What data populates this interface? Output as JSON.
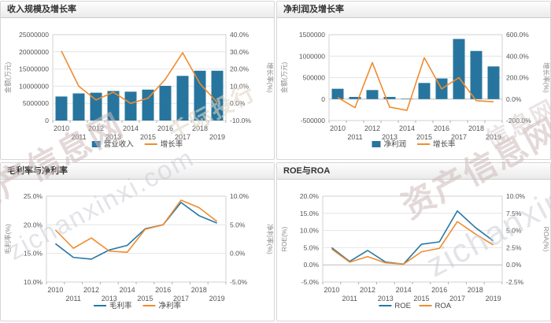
{
  "colors": {
    "bar_blue": "#27759e",
    "line_blue": "#2579a8",
    "line_orange": "#f08c2e",
    "panel_border": "#d6d6d6",
    "header_text": "#333333"
  },
  "watermarks": [
    "资产信息网",
    "zichanxinxi.com",
    "千际投行",
    "资产信息网",
    "zichanxinxi",
    "信息网"
  ],
  "chart_data": [
    {
      "type": "bar",
      "title": "收入规模及增长率",
      "categories": [
        "2010",
        "2011",
        "2012",
        "2013",
        "2014",
        "2015",
        "2016",
        "2017",
        "2018",
        "2019"
      ],
      "left_axis": {
        "label": "金额(万元)",
        "min": 0,
        "max": 25000000,
        "tick_values": [
          25000000,
          20000000,
          15000000,
          10000000,
          5000000,
          0
        ],
        "tick_labels": [
          "25000000",
          "20000000",
          "15000000",
          "10000000",
          "5000000",
          "0"
        ]
      },
      "right_axis": {
        "label": "增长率(%)",
        "min": -10,
        "max": 40,
        "tick_values": [
          40,
          30,
          20,
          10,
          0,
          -10
        ],
        "tick_labels": [
          "40.0%",
          "30.0%",
          "20.0%",
          "10.0%",
          "0.0%",
          "-10.0%"
        ]
      },
      "series": [
        {
          "name": "营业收入",
          "kind": "bar",
          "axis": "left",
          "color": "#27759e",
          "values": [
            7000000,
            7900000,
            8100000,
            8600000,
            8400000,
            9000000,
            10100000,
            13000000,
            14500000,
            14500000
          ]
        },
        {
          "name": "增长率",
          "kind": "line",
          "axis": "right",
          "color": "#f08c2e",
          "values": [
            30.5,
            10,
            2,
            6.5,
            0,
            3,
            14,
            29.5,
            11.5,
            0.5
          ]
        }
      ],
      "legend_position": "bottom",
      "grid": true
    },
    {
      "type": "bar",
      "title": "净利润及增长率",
      "categories": [
        "2010",
        "2011",
        "2012",
        "2013",
        "2014",
        "2015",
        "2016",
        "2017",
        "2018",
        "2019"
      ],
      "left_axis": {
        "label": "金额(万元)",
        "min": -500000,
        "max": 1500000,
        "tick_values": [
          1500000,
          1000000,
          500000,
          0,
          -500000
        ],
        "tick_labels": [
          "1500000",
          "1000000",
          "500000",
          "0",
          "-500000"
        ]
      },
      "right_axis": {
        "label": "增长率(%)",
        "min": -200,
        "max": 600,
        "tick_values": [
          600,
          400,
          200,
          0,
          -200
        ],
        "tick_labels": [
          "600.0%",
          "400.0%",
          "200.0%",
          "0.0%",
          "-200.0%"
        ]
      },
      "series": [
        {
          "name": "净利润",
          "kind": "bar",
          "axis": "left",
          "color": "#27759e",
          "values": [
            240000,
            50000,
            210000,
            50000,
            10000,
            375000,
            480000,
            1400000,
            1120000,
            760000
          ]
        },
        {
          "name": "增长率",
          "kind": "line",
          "axis": "right",
          "color": "#f08c2e",
          "values": [
            15,
            -80,
            340,
            -75,
            -105,
            385,
            95,
            200,
            -15,
            -25
          ]
        }
      ],
      "legend_position": "bottom",
      "grid": true
    },
    {
      "type": "line",
      "title": "毛利率与净利率",
      "categories": [
        "2010",
        "2011",
        "2012",
        "2013",
        "2014",
        "2015",
        "2016",
        "2017",
        "2018",
        "2019"
      ],
      "left_axis": {
        "label": "毛利率(%)",
        "min": 10,
        "max": 25,
        "tick_values": [
          25,
          20,
          15,
          10
        ],
        "tick_labels": [
          "25.0%",
          "20.0%",
          "15.0%",
          "10.0%"
        ]
      },
      "right_axis": {
        "label": "净利率(%)",
        "min": -5,
        "max": 10,
        "tick_values": [
          10,
          5,
          0,
          -5
        ],
        "tick_labels": [
          "10.0%",
          "5.0%",
          "0.0%",
          "-5.0%"
        ]
      },
      "series": [
        {
          "name": "毛利率",
          "kind": "line",
          "axis": "left",
          "color": "#2579a8",
          "values": [
            16.7,
            14.3,
            14.0,
            15.6,
            16.4,
            19.3,
            20.0,
            23.9,
            21.6,
            20.3
          ]
        },
        {
          "name": "净利率",
          "kind": "line",
          "axis": "right",
          "color": "#f08c2e",
          "values": [
            4.1,
            0.9,
            2.7,
            0.4,
            0.2,
            4.2,
            5.0,
            9.3,
            8.0,
            5.6
          ]
        }
      ],
      "legend_position": "bottom",
      "grid": true
    },
    {
      "type": "line",
      "title": "ROE与ROA",
      "categories": [
        "2010",
        "2011",
        "2012",
        "2013",
        "2014",
        "2015",
        "2016",
        "2017",
        "2018",
        "2019"
      ],
      "left_axis": {
        "label": "ROE(%)",
        "min": -5,
        "max": 20,
        "tick_values": [
          20,
          15,
          10,
          5,
          0,
          -5
        ],
        "tick_labels": [
          "20.0%",
          "15.0%",
          "10.0%",
          "5.0%",
          "0.0%",
          "-5.0%"
        ]
      },
      "right_axis": {
        "label": "ROA(%)",
        "min": -2.5,
        "max": 10,
        "tick_values": [
          10,
          7.5,
          5,
          2.5,
          0,
          -2.5
        ],
        "tick_labels": [
          "10.0%",
          "7.5%",
          "5.0%",
          "2.5%",
          "0.0%",
          "-2.5%"
        ]
      },
      "series": [
        {
          "name": "ROE",
          "kind": "line",
          "axis": "left",
          "color": "#2579a8",
          "values": [
            5.0,
            1.0,
            4.2,
            0.8,
            0.2,
            6.0,
            6.7,
            15.7,
            10.9,
            7.0
          ]
        },
        {
          "name": "ROA",
          "kind": "line",
          "axis": "right",
          "color": "#f08c2e",
          "values": [
            2.3,
            0.4,
            1.2,
            0.3,
            0.1,
            1.9,
            2.4,
            6.3,
            4.5,
            2.9
          ]
        }
      ],
      "legend_position": "bottom",
      "grid": true
    }
  ]
}
